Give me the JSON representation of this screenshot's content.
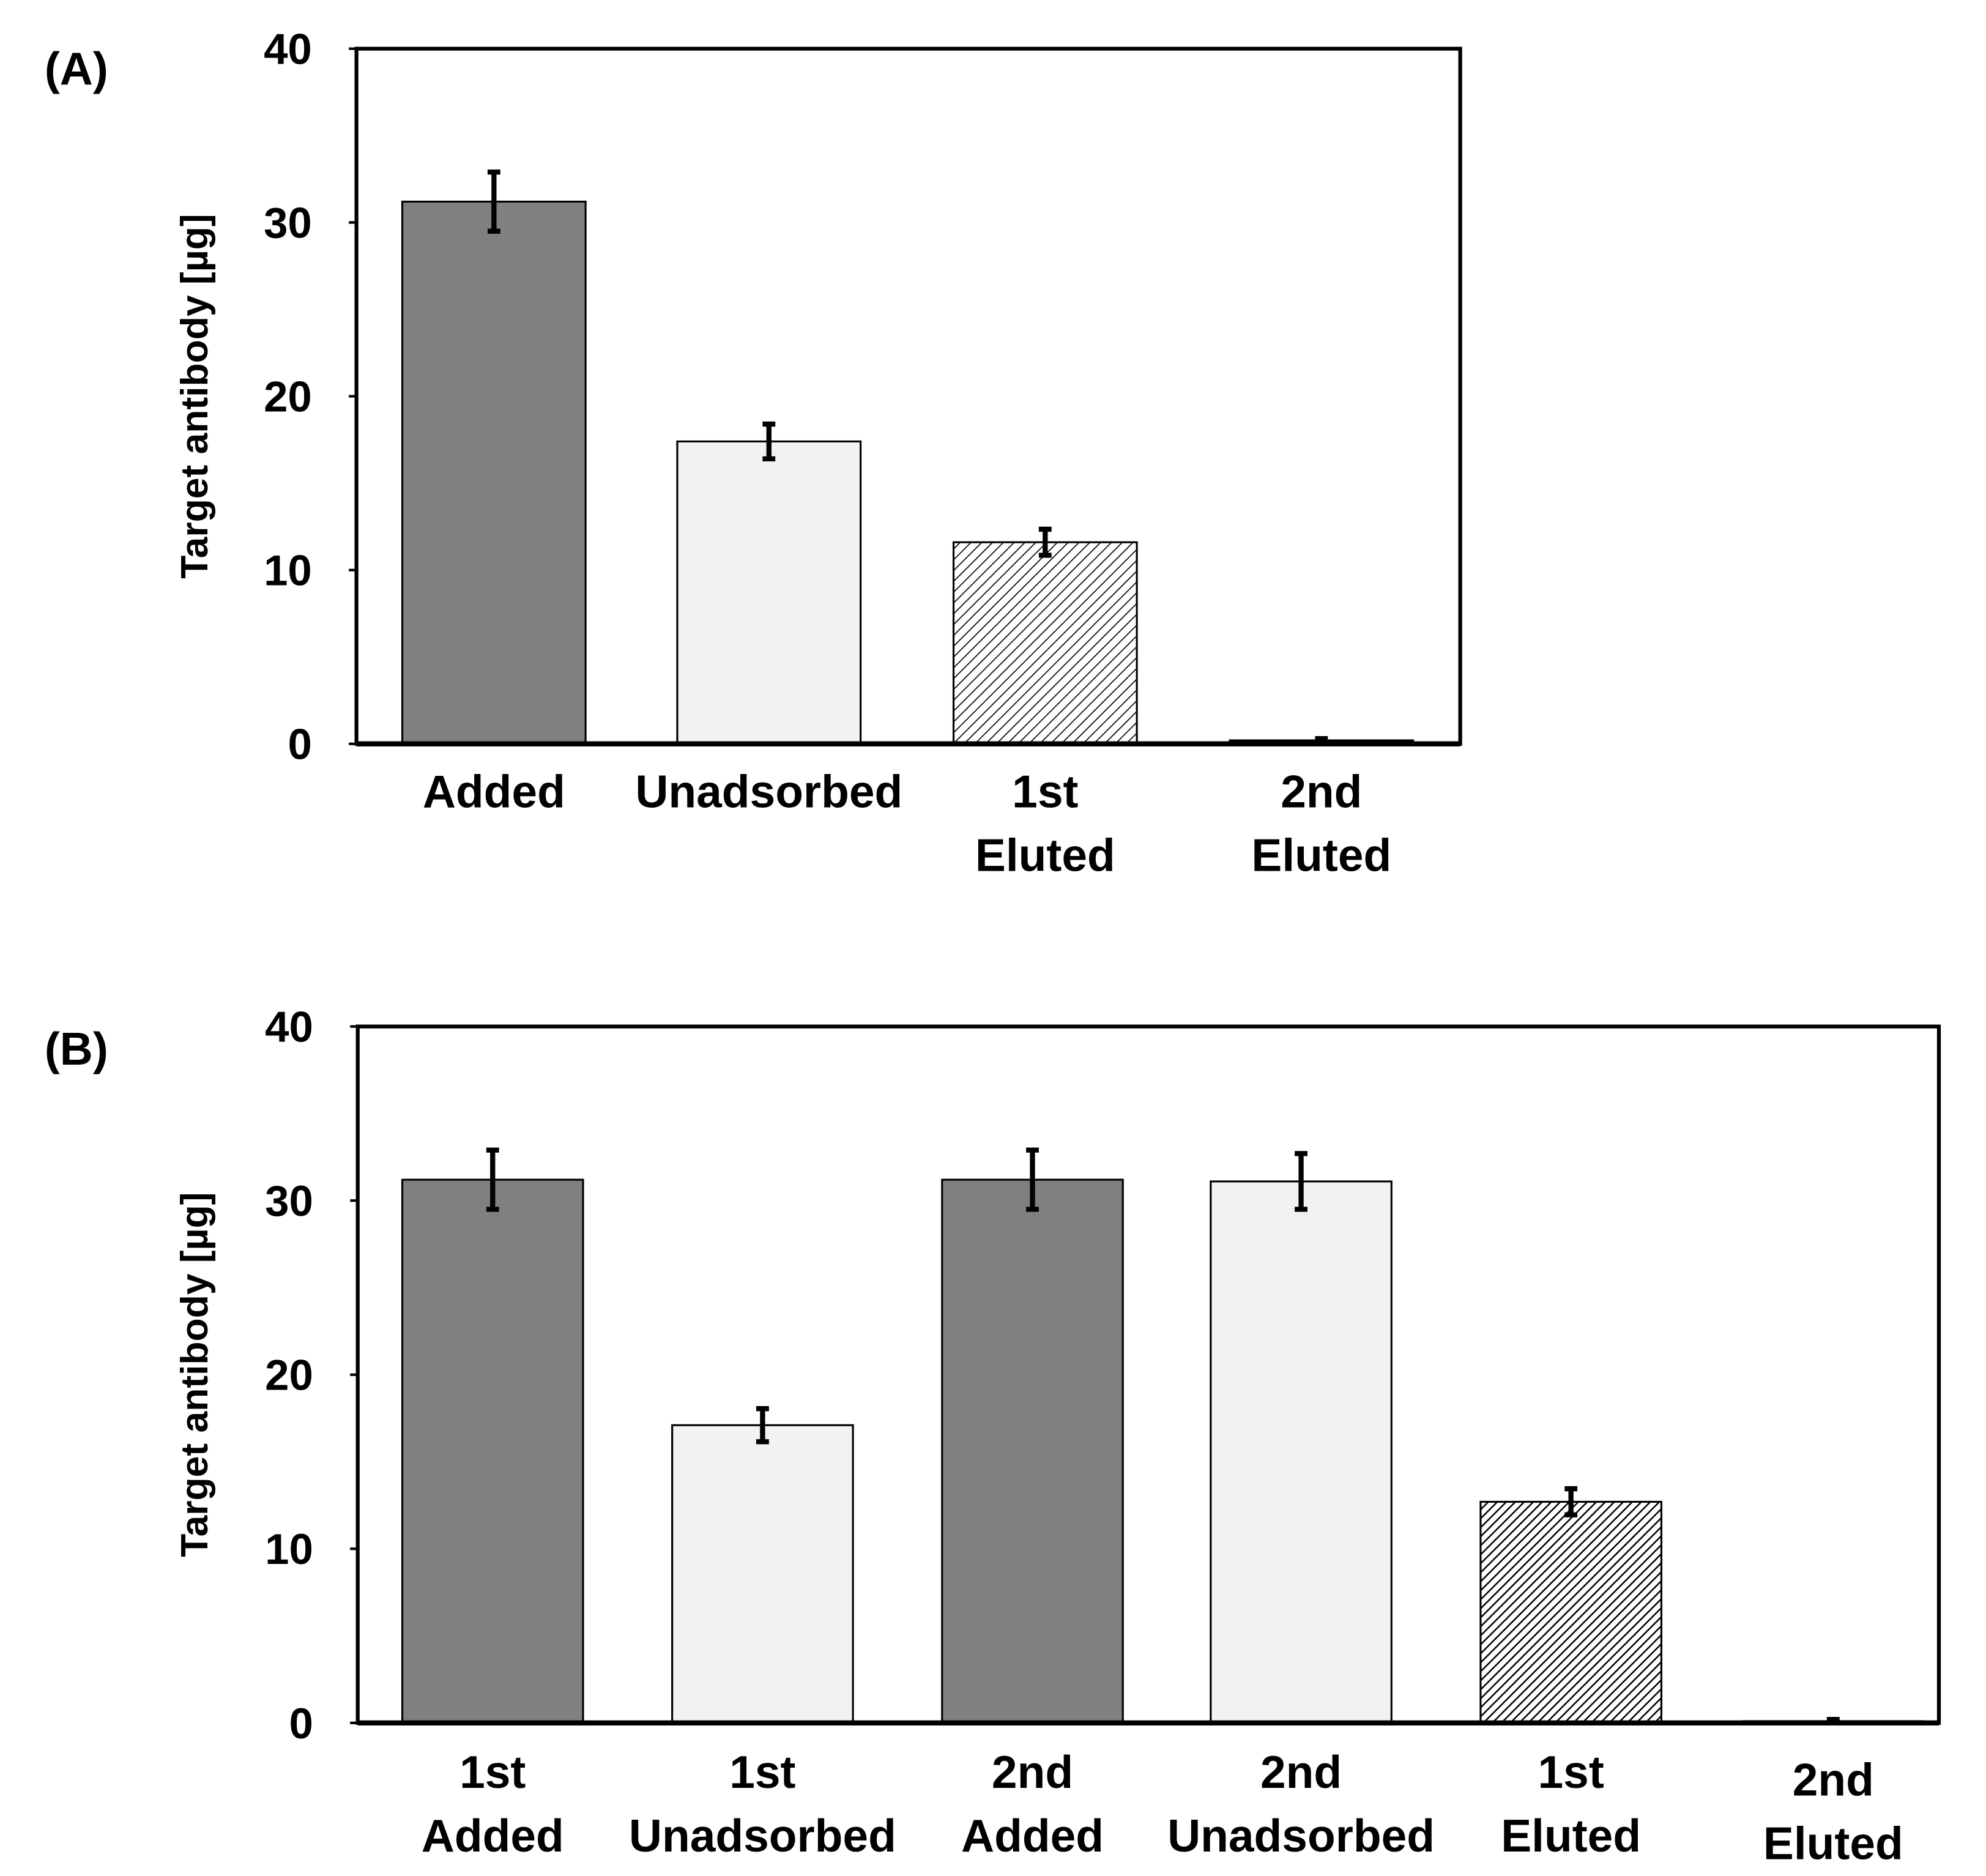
{
  "chart_data": [
    {
      "type": "bar",
      "panel_label": "(A)",
      "ylabel": "Target antibody [µg]",
      "ylim": [
        0,
        40
      ],
      "yticks": [
        0,
        10,
        20,
        30,
        40
      ],
      "grid": false,
      "categories": [
        [
          "Added"
        ],
        [
          "Unadsorbed"
        ],
        [
          "1st",
          "Eluted"
        ],
        [
          "2nd",
          "Eluted"
        ]
      ],
      "values": [
        31.2,
        17.4,
        11.6,
        0.2
      ],
      "errors": [
        1.7,
        1.0,
        0.75,
        0.1
      ],
      "fills": [
        "dark",
        "light",
        "hatch",
        "dotted"
      ]
    },
    {
      "type": "bar",
      "panel_label": "(B)",
      "ylabel": "Target antibody [µg]",
      "ylim": [
        0,
        40
      ],
      "yticks": [
        0,
        10,
        20,
        30,
        40
      ],
      "grid": false,
      "categories": [
        [
          "1st",
          "Added"
        ],
        [
          "1st",
          "Unadsorbed"
        ],
        [
          "2nd",
          "Added"
        ],
        [
          "2nd",
          "Unadsorbed"
        ],
        [
          "1st",
          "Eluted"
        ],
        [
          "2nd",
          "Eluted"
        ]
      ],
      "values": [
        31.2,
        17.1,
        31.2,
        31.1,
        12.7,
        0.1
      ],
      "errors": [
        1.7,
        0.95,
        1.7,
        1.6,
        0.75,
        0.1
      ],
      "fills": [
        "dark",
        "light",
        "dark",
        "light",
        "hatch-dense",
        "light"
      ]
    }
  ],
  "colors": {
    "dark": "#808080",
    "light": "#f2f2f2",
    "axis": "#000000"
  }
}
